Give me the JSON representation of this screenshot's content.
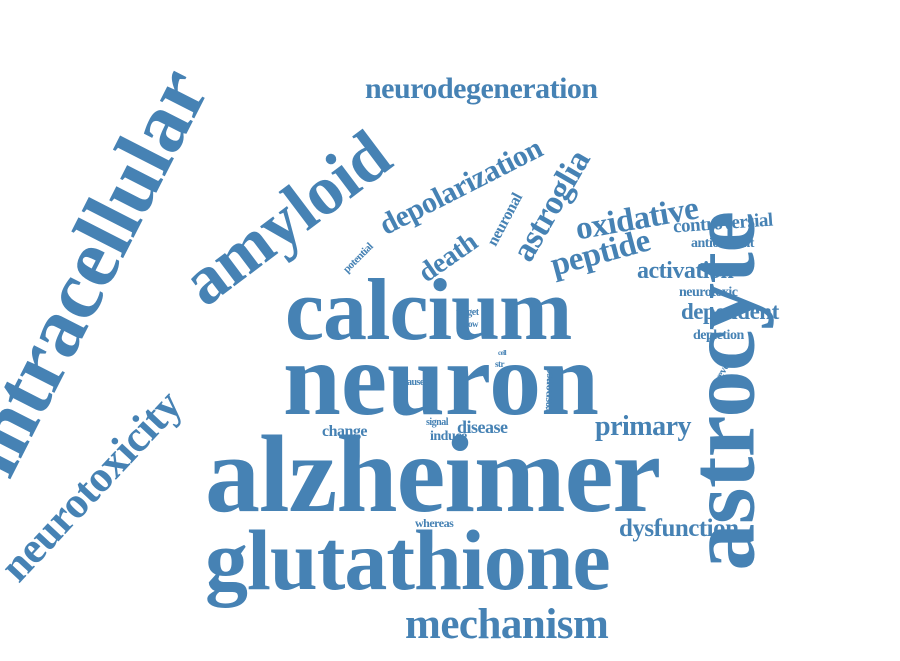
{
  "color": "#4682b4",
  "words": [
    {
      "text": "neuron"
    },
    {
      "text": "alzheimer"
    },
    {
      "text": "calcium"
    },
    {
      "text": "glutathione"
    },
    {
      "text": "astrocyte"
    },
    {
      "text": "intracellular"
    },
    {
      "text": "amyloid"
    },
    {
      "text": "neurotoxicity"
    },
    {
      "text": "neurodegeneration"
    },
    {
      "text": "depolarization"
    },
    {
      "text": "astroglia"
    },
    {
      "text": "oxidative"
    },
    {
      "text": "peptide"
    },
    {
      "text": "death"
    },
    {
      "text": "neuronal"
    },
    {
      "text": "potential"
    },
    {
      "text": "controversial"
    },
    {
      "text": "antioxidant"
    },
    {
      "text": "activation"
    },
    {
      "text": "neurotoxic"
    },
    {
      "text": "dependent"
    },
    {
      "text": "depletion"
    },
    {
      "text": "prevent"
    },
    {
      "text": "target"
    },
    {
      "text": "slow"
    },
    {
      "text": "cell"
    },
    {
      "text": "str"
    },
    {
      "text": "cause"
    },
    {
      "text": "response"
    },
    {
      "text": "signal"
    },
    {
      "text": "disease"
    },
    {
      "text": "induce"
    },
    {
      "text": "change"
    },
    {
      "text": "primary"
    },
    {
      "text": "whereas"
    },
    {
      "text": "dysfunction"
    },
    {
      "text": "mechanism"
    }
  ]
}
